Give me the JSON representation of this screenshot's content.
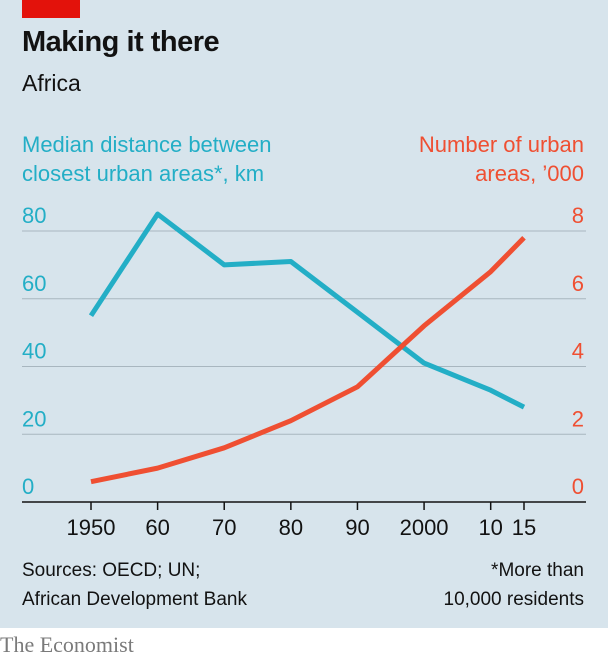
{
  "header": {
    "title": "Making it there",
    "subtitle": "Africa"
  },
  "axis_titles": {
    "left": [
      "Median distance between",
      "closest urban areas*, km"
    ],
    "right": [
      "Number of urban",
      "areas, ’000"
    ]
  },
  "footer": {
    "sources": [
      "Sources: OECD; UN;",
      "African Development Bank"
    ],
    "note": [
      "*More than",
      "10,000 residents"
    ]
  },
  "brand": "The Economist",
  "colors": {
    "background": "#d7e4ec",
    "left_series": "#23aec6",
    "right_series": "#ef4f32",
    "brand_tab": "#e3120b"
  },
  "chart_data": {
    "type": "line",
    "x_tick_labels": [
      "1950",
      "60",
      "70",
      "80",
      "90",
      "2000",
      "10",
      "15"
    ],
    "x_ticks": [
      1950,
      1960,
      1970,
      1980,
      1990,
      2000,
      2010,
      2015
    ],
    "y_left": {
      "label": "Median distance between closest urban areas*, km",
      "ticks": [
        "0",
        "20",
        "40",
        "60",
        "80"
      ],
      "range": [
        0,
        80
      ]
    },
    "y_right": {
      "label": "Number of urban areas, ’000",
      "ticks": [
        "0",
        "2",
        "4",
        "6",
        "8"
      ],
      "range": [
        0,
        8
      ]
    },
    "grid": true,
    "series": [
      {
        "axis": "left",
        "x": [
          1950,
          1960,
          1970,
          1980,
          1990,
          2000,
          2010,
          2015
        ],
        "y": [
          55,
          85,
          70,
          71,
          56,
          41,
          33,
          28
        ]
      },
      {
        "axis": "right",
        "x": [
          1950,
          1960,
          1970,
          1980,
          1990,
          2000,
          2010,
          2015
        ],
        "y": [
          0.6,
          1.0,
          1.6,
          2.4,
          3.4,
          5.2,
          6.8,
          7.8
        ]
      }
    ]
  }
}
